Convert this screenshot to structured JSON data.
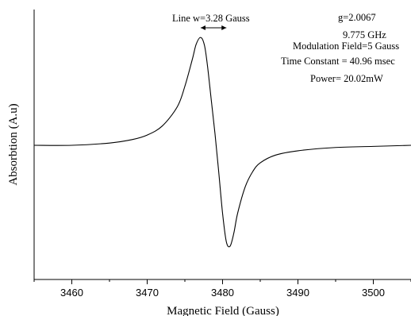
{
  "chart_data": {
    "type": "line",
    "xlabel": "Magnetic Field (Gauss)",
    "ylabel": "Absorbtion (A.u)",
    "xlim": [
      3455,
      3505
    ],
    "ylim": [
      -1.0,
      1.0
    ],
    "x_ticks": [
      3460,
      3470,
      3480,
      3490,
      3500
    ],
    "series": [
      {
        "name": "",
        "x": [
          3455,
          3460,
          3465,
          3468,
          3470,
          3472,
          3474,
          3475,
          3476,
          3476.5,
          3477.1,
          3477.6,
          3478,
          3478.5,
          3479,
          3479.5,
          3480,
          3480.5,
          3481,
          3481.5,
          3482,
          3483,
          3484,
          3485,
          3487,
          3490,
          3495,
          3500,
          3505
        ],
        "y": [
          0.0,
          0.0,
          0.02,
          0.05,
          0.09,
          0.17,
          0.34,
          0.52,
          0.76,
          0.89,
          0.95,
          0.88,
          0.7,
          0.4,
          0.1,
          -0.25,
          -0.62,
          -0.88,
          -0.92,
          -0.8,
          -0.62,
          -0.38,
          -0.24,
          -0.16,
          -0.09,
          -0.05,
          -0.02,
          -0.01,
          0.0
        ]
      }
    ],
    "annotations": {
      "line_width": "Line w=3.28 Gauss",
      "g_value": "g=2.0067",
      "frequency": "9.775 GHz",
      "modulation": "Modulation Field=5 Gauss",
      "time_constant": "Time Constant = 40.96 msec",
      "power": "Power= 20.02mW"
    },
    "linewidth_marker": {
      "x1": 3477.1,
      "x2": 3480.5
    },
    "grid": false,
    "legend": "none"
  }
}
